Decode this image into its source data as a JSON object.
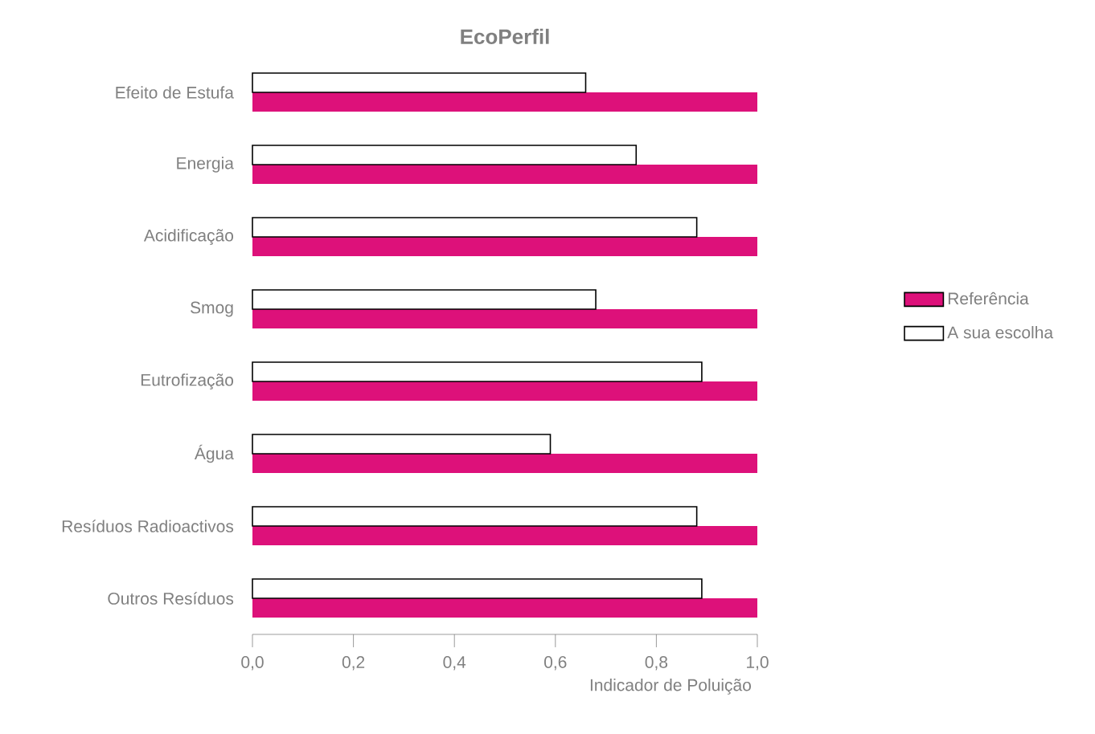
{
  "chart_data": {
    "type": "bar",
    "orientation": "horizontal",
    "title": "EcoPerfil",
    "xlabel": "Indicador de Poluição",
    "categories": [
      "Efeito de Estufa",
      "Energia",
      "Acidificação",
      "Smog",
      "Eutrofização",
      "Água",
      "Resíduos Radioactivos",
      "Outros Resíduos"
    ],
    "series": [
      {
        "name": "Referência",
        "color": "#dd117a",
        "values": [
          1.0,
          1.0,
          1.0,
          1.0,
          1.0,
          1.0,
          1.0,
          1.0
        ]
      },
      {
        "name": "A sua escolha",
        "color": "#ffffff",
        "values": [
          0.66,
          0.76,
          0.88,
          0.68,
          0.89,
          0.59,
          0.88,
          0.89
        ]
      }
    ],
    "xlim": [
      0,
      1.0
    ],
    "xticks": [
      {
        "value": 0,
        "label": "0,0"
      },
      {
        "value": 0.2,
        "label": "0,2"
      },
      {
        "value": 0.4,
        "label": "0,4"
      },
      {
        "value": 0.6,
        "label": "0,6"
      },
      {
        "value": 0.8,
        "label": "0,8"
      },
      {
        "value": 1.0,
        "label": "1,0"
      }
    ],
    "legend": "right"
  }
}
